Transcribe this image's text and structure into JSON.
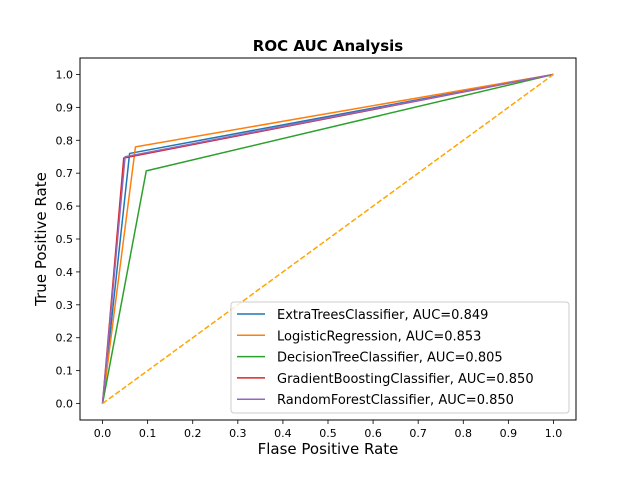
{
  "chart_data": {
    "type": "line",
    "title": "ROC AUC Analysis",
    "xlabel": "Flase Positive Rate",
    "ylabel": "True Positive Rate",
    "xlim": [
      -0.05,
      1.05
    ],
    "ylim": [
      -0.05,
      1.05
    ],
    "xticks": [
      "0.0",
      "0.1",
      "0.2",
      "0.3",
      "0.4",
      "0.5",
      "0.6",
      "0.7",
      "0.8",
      "0.9",
      "1.0"
    ],
    "yticks": [
      "0.0",
      "0.1",
      "0.2",
      "0.3",
      "0.4",
      "0.5",
      "0.6",
      "0.7",
      "0.8",
      "0.9",
      "1.0"
    ],
    "grid": false,
    "legend_position": "lower-right",
    "series": [
      {
        "name": "ExtraTreesClassifier, AUC=0.849",
        "color": "#1f77b4",
        "dashed": false,
        "x": [
          0,
          0.06,
          1
        ],
        "y": [
          0,
          0.76,
          1
        ]
      },
      {
        "name": "LogisticRegression, AUC=0.853",
        "color": "#ff7f0e",
        "dashed": false,
        "x": [
          0,
          0.073,
          1
        ],
        "y": [
          0,
          0.78,
          1
        ]
      },
      {
        "name": "DecisionTreeClassifier, AUC=0.805",
        "color": "#2ca02c",
        "dashed": false,
        "x": [
          0,
          0.097,
          1
        ],
        "y": [
          0,
          0.707,
          1
        ]
      },
      {
        "name": "GradientBoostingClassifier, AUC=0.850",
        "color": "#d62728",
        "dashed": false,
        "x": [
          0,
          0.047,
          1
        ],
        "y": [
          0,
          0.746,
          1
        ]
      },
      {
        "name": "RandomForestClassifier, AUC=0.850",
        "color": "#9467bd",
        "dashed": false,
        "x": [
          0,
          0.05,
          1
        ],
        "y": [
          0,
          0.75,
          1
        ]
      },
      {
        "color": "#ffa500",
        "dashed": true,
        "x": [
          0,
          1
        ],
        "y": [
          0,
          1
        ]
      }
    ]
  }
}
